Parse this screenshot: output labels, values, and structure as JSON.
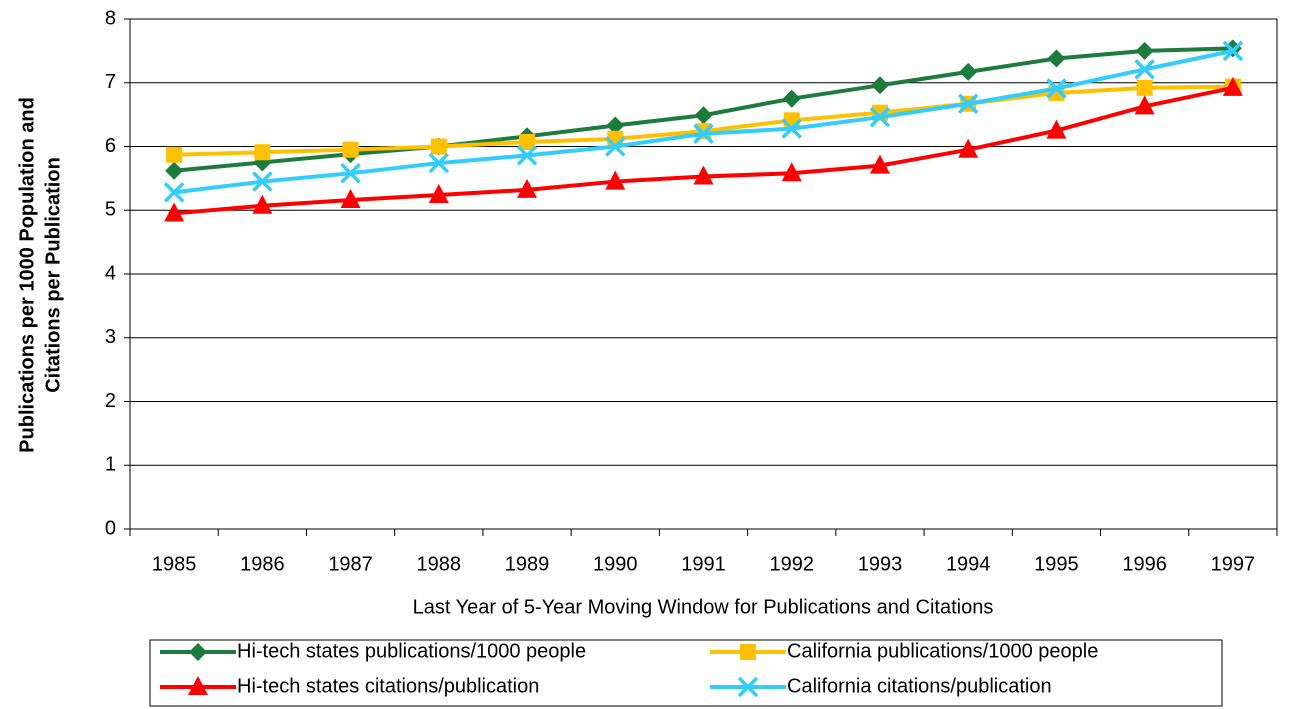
{
  "chart_data": {
    "type": "line",
    "ylabel": [
      "Publications per 1000 Population and",
      "Citations per Publication"
    ],
    "xlabel": "Last Year of 5-Year Moving Window for Publications and Citations",
    "categories": [
      "1985",
      "1986",
      "1987",
      "1988",
      "1989",
      "1990",
      "1991",
      "1992",
      "1993",
      "1994",
      "1995",
      "1996",
      "1997"
    ],
    "series": [
      {
        "name": "Hi-tech states publications/1000 people",
        "color": "#1e7b3e",
        "marker": "diamond",
        "values": [
          5.62,
          5.75,
          5.88,
          6.0,
          6.16,
          6.33,
          6.49,
          6.75,
          6.96,
          7.17,
          7.38,
          7.5,
          7.54
        ]
      },
      {
        "name": "California publications/1000 people",
        "color": "#ffc000",
        "marker": "square",
        "values": [
          5.87,
          5.91,
          5.95,
          6.0,
          6.07,
          6.12,
          6.24,
          6.41,
          6.53,
          6.67,
          6.84,
          6.92,
          6.94
        ]
      },
      {
        "name": "Hi-tech states citations/publication",
        "color": "#ff0000",
        "marker": "triangle",
        "values": [
          4.95,
          5.07,
          5.16,
          5.24,
          5.32,
          5.45,
          5.53,
          5.58,
          5.7,
          5.95,
          6.25,
          6.63,
          6.92
        ]
      },
      {
        "name": "California citations/publication",
        "color": "#33ccff",
        "marker": "x",
        "values": [
          5.28,
          5.45,
          5.58,
          5.74,
          5.86,
          6.0,
          6.2,
          6.28,
          6.46,
          6.67,
          6.91,
          7.21,
          7.5
        ]
      }
    ],
    "ylim": [
      0,
      8
    ],
    "yticks": [
      0,
      1,
      2,
      3,
      4,
      5,
      6,
      7,
      8
    ],
    "grid": true,
    "legend": "bottom"
  }
}
